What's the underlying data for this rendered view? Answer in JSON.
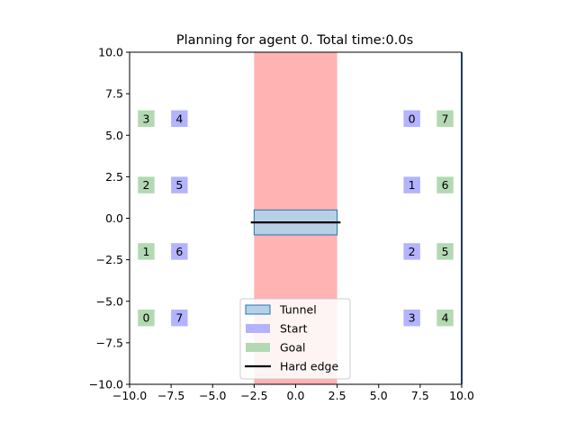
{
  "chart_data": {
    "type": "scatter",
    "title": "Planning for agent 0. Total time:0.0s",
    "xlabel": "",
    "ylabel": "",
    "xlim": [
      -10,
      10
    ],
    "ylim": [
      -10,
      10
    ],
    "x_ticks": [
      -10,
      -7.5,
      -5,
      -2.5,
      0,
      2.5,
      5,
      7.5,
      10
    ],
    "x_tick_labels": [
      "−10.0",
      "−7.5",
      "−5.0",
      "−2.5",
      "0.0",
      "2.5",
      "5.0",
      "7.5",
      "10.0"
    ],
    "y_ticks": [
      10,
      7.5,
      5,
      2.5,
      0,
      -2.5,
      -5,
      -7.5,
      -10
    ],
    "y_tick_labels": [
      "10.0",
      "7.5",
      "5.0",
      "2.5",
      "0.0",
      "−2.5",
      "−5.0",
      "−7.5",
      "−10.0"
    ],
    "grid": false,
    "legend_position": "bottom-center",
    "legend": [
      {
        "label": "Tunnel",
        "kind": "box",
        "fill": "#b7d0e6",
        "stroke": "#1f77b4"
      },
      {
        "label": "Start",
        "kind": "box",
        "fill": "#b3b3ff"
      },
      {
        "label": "Goal",
        "kind": "box",
        "fill": "#b3d9b3"
      },
      {
        "label": "Hard edge",
        "kind": "line",
        "stroke": "#000000"
      }
    ],
    "regions": [
      {
        "name": "forbidden-band",
        "x0": -2.5,
        "x1": 2.5,
        "y0": -10,
        "y1": 10,
        "color": "#ffb3b3"
      }
    ],
    "tunnel": {
      "x0": -2.5,
      "x1": 2.5,
      "y0": -1.0,
      "y1": 0.5,
      "fill": "#b7d0e6",
      "stroke": "#1f77b4"
    },
    "hard_edge": {
      "x0": -2.7,
      "x1": 2.7,
      "y": -0.25,
      "color": "#000000"
    },
    "starts": [
      {
        "label": "0",
        "x": 7.0,
        "y": 6.0
      },
      {
        "label": "1",
        "x": 7.0,
        "y": 2.0
      },
      {
        "label": "2",
        "x": 7.0,
        "y": -2.0
      },
      {
        "label": "3",
        "x": 7.0,
        "y": -6.0
      },
      {
        "label": "4",
        "x": -7.0,
        "y": 6.0
      },
      {
        "label": "5",
        "x": -7.0,
        "y": 2.0
      },
      {
        "label": "6",
        "x": -7.0,
        "y": -2.0
      },
      {
        "label": "7",
        "x": -7.0,
        "y": -6.0
      }
    ],
    "goals": [
      {
        "label": "0",
        "x": -9.0,
        "y": -6.0
      },
      {
        "label": "1",
        "x": -9.0,
        "y": -2.0
      },
      {
        "label": "2",
        "x": -9.0,
        "y": 2.0
      },
      {
        "label": "3",
        "x": -9.0,
        "y": 6.0
      },
      {
        "label": "4",
        "x": 9.0,
        "y": -6.0
      },
      {
        "label": "5",
        "x": 9.0,
        "y": -2.0
      },
      {
        "label": "6",
        "x": 9.0,
        "y": 2.0
      },
      {
        "label": "7",
        "x": 9.0,
        "y": 6.0
      }
    ],
    "marker_half_size": 0.5,
    "colors": {
      "start": "#b3b3ff",
      "goal": "#b3d9b3",
      "axes": "#000000",
      "right_spine": "#1f3a5f"
    }
  }
}
